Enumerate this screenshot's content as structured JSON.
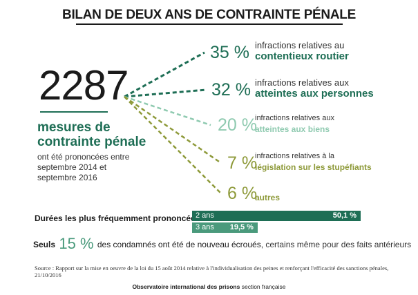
{
  "title": "BILAN DE DEUX ANS DE CONTRAINTE PÉNALE",
  "total": "2287",
  "total_label_1": "mesures de",
  "total_label_2": "contrainte pénale",
  "total_sub_1": "ont été prononcées entre",
  "total_sub_2": "septembre 2014 et",
  "total_sub_3": "septembre 2016",
  "colors": {
    "dark": "#1e6e55",
    "mid": "#4a9a7c",
    "light": "#8fcab0",
    "olive": "#7d8a2c",
    "olive_light": "#8e9a3a"
  },
  "chart_data": [
    {
      "type": "bar",
      "categories": [
        "contentieux routier",
        "atteintes aux personnes",
        "atteintes aux biens",
        "législation sur les stupéfiants",
        "autres"
      ],
      "values": [
        35,
        32,
        20,
        7,
        6
      ],
      "labels": [
        "35 %",
        "32 %",
        "20 %",
        "7 %",
        "6 %"
      ],
      "prefixes": [
        "infractions relatives au",
        "infractions  relatives aux",
        "infractions  relatives aux",
        "infractions  relatives à la",
        ""
      ],
      "colors": [
        "#1e6e55",
        "#1e6e55",
        "#8fcab0",
        "#8e9a3a",
        "#8e9a3a"
      ]
    },
    {
      "type": "bar",
      "title": "Durées les plus fréquemment prononcées",
      "categories": [
        "2 ans",
        "3 ans"
      ],
      "values": [
        50.1,
        19.5
      ],
      "labels": [
        "50,1 %",
        "19,5 %"
      ],
      "colors": [
        "#1e6e55",
        "#4a9a7c"
      ]
    }
  ],
  "seuls": {
    "prefix": "Seuls",
    "pct": "15 %",
    "middle": "des condamnés ont été de nouveau écroués,",
    "suffix": " certains même pour des faits antérieurs"
  },
  "source": "Source : Rapport sur la mise en oeuvre de la loi du 15 août 2014 relative à l'individualisation des peines et renforçant l'efficacité des sanctions pénales, 21/10/2016",
  "footer": {
    "org": "Observatoire international des prisons",
    "section": " section française"
  }
}
